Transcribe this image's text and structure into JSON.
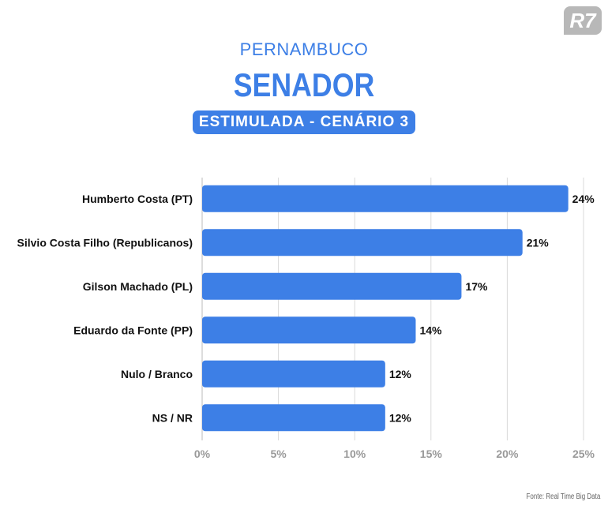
{
  "logo": "R7",
  "header": {
    "region": "PERNAMBUCO",
    "title": "SENADOR",
    "badge": "ESTIMULADA - CENÁRIO 3"
  },
  "source": "Fonte: Real Time Big Data",
  "colors": {
    "bar": "#3d7fe6",
    "grid": "#d9d9d9",
    "tick": "#999999"
  },
  "chart_data": {
    "type": "bar",
    "orientation": "horizontal",
    "title": "SENADOR",
    "subtitle": "ESTIMULADA - CENÁRIO 3",
    "categories": [
      "Humberto Costa (PT)",
      "Silvio Costa Filho (Republicanos)",
      "Gilson Machado (PL)",
      "Eduardo da Fonte (PP)",
      "Nulo / Branco",
      "NS / NR"
    ],
    "values": [
      24,
      21,
      17,
      14,
      12,
      12
    ],
    "labels": [
      "24%",
      "21%",
      "17%",
      "14%",
      "12%",
      "12%"
    ],
    "xlim": [
      0,
      25
    ],
    "xticks": [
      "0%",
      "5%",
      "10%",
      "15%",
      "20%",
      "25%"
    ],
    "grid": true
  }
}
